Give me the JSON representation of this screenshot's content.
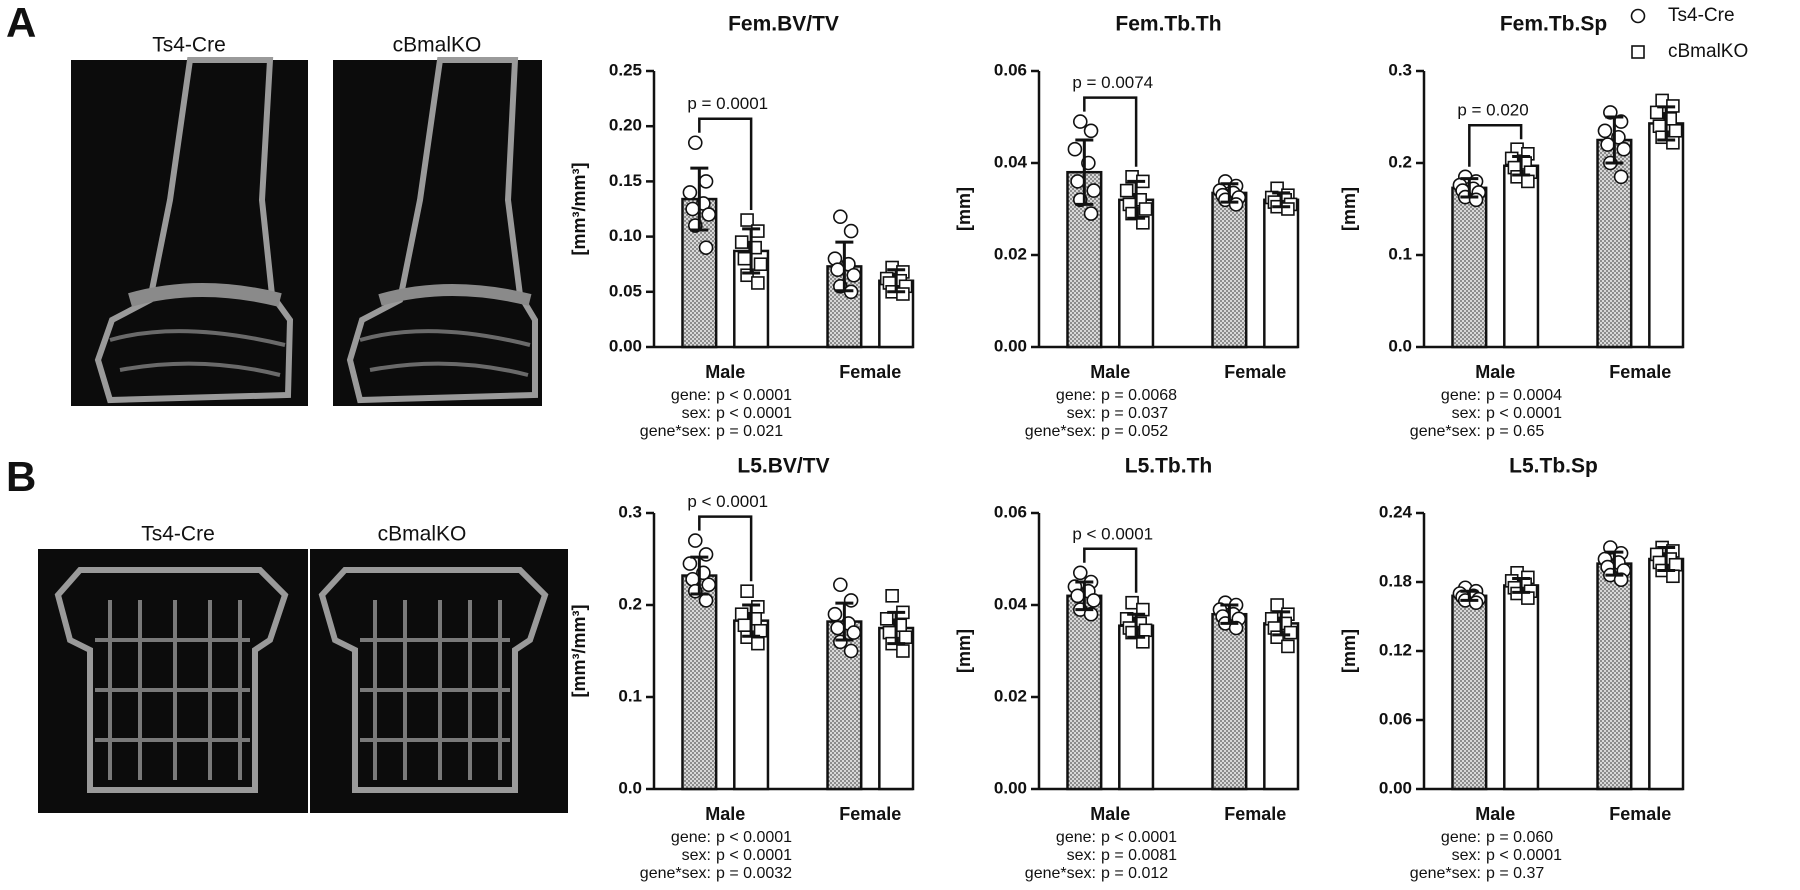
{
  "panels": [
    {
      "label": "A",
      "images": [
        "Ts4-Cre",
        "cBmalKO"
      ]
    },
    {
      "label": "B",
      "images": [
        "Ts4-Cre",
        "cBmalKO"
      ]
    }
  ],
  "chart_data": [
    {
      "type": "bar",
      "title": "Fem.BV/TV",
      "y_label": "[mm³/mm³]",
      "categories": [
        "Male",
        "Female"
      ],
      "ylim": [
        0,
        0.25
      ],
      "yticks": [
        {
          "value": 0,
          "label": "0.00"
        },
        0.05,
        {
          "value": 0.1,
          "label": "0.10"
        },
        0.15,
        {
          "value": 0.2,
          "label": "0.20"
        },
        0.25
      ],
      "series": [
        {
          "color": "#b8b8b8",
          "pattern": "dots",
          "marker": "circle",
          "values": [
            0.134,
            0.073
          ],
          "errors": [
            0.028,
            0.022
          ],
          "points": [
            [
              0.185,
              0.15,
              0.14,
              0.13,
              0.125,
              0.12,
              0.11,
              0.09
            ],
            [
              0.118,
              0.105,
              0.08,
              0.075,
              0.07,
              0.065,
              0.055,
              0.05
            ]
          ]
        },
        {
          "color": "#ffffff",
          "pattern": "none",
          "marker": "square",
          "values": [
            0.087,
            0.06
          ],
          "errors": [
            0.02,
            0.01
          ],
          "points": [
            [
              0.115,
              0.105,
              0.095,
              0.09,
              0.08,
              0.075,
              0.065,
              0.058
            ],
            [
              0.072,
              0.068,
              0.062,
              0.06,
              0.058,
              0.055,
              0.05,
              0.048
            ]
          ]
        }
      ],
      "comparison": {
        "text": "p = 0.0001"
      },
      "stats": [
        {
          "term": "gene:",
          "text": "p < 0.0001"
        },
        {
          "term": "sex:",
          "text": "p < 0.0001"
        },
        {
          "term": "gene*sex:",
          "text": "p = 0.021"
        }
      ]
    },
    {
      "type": "bar",
      "title": "Fem.Tb.Th",
      "y_label": "[mm]",
      "categories": [
        "Male",
        "Female"
      ],
      "ylim": [
        0,
        0.06
      ],
      "yticks": [
        {
          "value": 0,
          "label": "0.00"
        },
        0.02,
        0.04,
        0.06
      ],
      "series": [
        {
          "color": "#b8b8b8",
          "pattern": "dots",
          "marker": "circle",
          "values": [
            0.038,
            0.0335
          ],
          "errors": [
            0.007,
            0.002
          ],
          "points": [
            [
              0.049,
              0.047,
              0.043,
              0.04,
              0.036,
              0.034,
              0.032,
              0.029
            ],
            [
              0.036,
              0.035,
              0.034,
              0.0335,
              0.033,
              0.0325,
              0.032,
              0.031
            ]
          ]
        },
        {
          "color": "#ffffff",
          "pattern": "none",
          "marker": "square",
          "values": [
            0.032,
            0.032
          ],
          "errors": [
            0.004,
            0.0015
          ],
          "points": [
            [
              0.037,
              0.036,
              0.034,
              0.032,
              0.031,
              0.03,
              0.029,
              0.027
            ],
            [
              0.0345,
              0.033,
              0.0325,
              0.032,
              0.0315,
              0.031,
              0.0305,
              0.03
            ]
          ]
        }
      ],
      "comparison": {
        "text": "p = 0.0074"
      },
      "stats": [
        {
          "term": "gene:",
          "text": "p = 0.0068"
        },
        {
          "term": "sex:",
          "text": "p = 0.037"
        },
        {
          "term": "gene*sex:",
          "text": "p = 0.052"
        }
      ]
    },
    {
      "type": "bar",
      "title": "Fem.Tb.Sp",
      "y_label": "[mm]",
      "categories": [
        "Male",
        "Female"
      ],
      "ylim": [
        0,
        0.3
      ],
      "yticks": [
        {
          "value": 0,
          "label": "0.0"
        },
        0.1,
        0.2,
        0.3
      ],
      "legend": "top-right",
      "series": [
        {
          "name": "Ts4-Cre",
          "color": "#b8b8b8",
          "pattern": "dots",
          "marker": "circle",
          "values": [
            0.173,
            0.225
          ],
          "errors": [
            0.01,
            0.025
          ],
          "points": [
            [
              0.185,
              0.18,
              0.176,
              0.172,
              0.17,
              0.168,
              0.163,
              0.16
            ],
            [
              0.255,
              0.245,
              0.235,
              0.228,
              0.22,
              0.215,
              0.2,
              0.185
            ]
          ]
        },
        {
          "name": "cBmalKO",
          "color": "#ffffff",
          "pattern": "none",
          "marker": "square",
          "values": [
            0.197,
            0.243
          ],
          "errors": [
            0.01,
            0.018
          ],
          "points": [
            [
              0.215,
              0.21,
              0.205,
              0.2,
              0.195,
              0.19,
              0.185,
              0.18
            ],
            [
              0.268,
              0.262,
              0.255,
              0.248,
              0.24,
              0.235,
              0.228,
              0.222
            ]
          ]
        }
      ],
      "comparison": {
        "text": "p = 0.020"
      },
      "stats": [
        {
          "term": "gene:",
          "text": "p = 0.0004"
        },
        {
          "term": "sex:",
          "text": "p < 0.0001"
        },
        {
          "term": "gene*sex:",
          "text": "p = 0.65"
        }
      ]
    },
    {
      "type": "bar",
      "title": "L5.BV/TV",
      "y_label": "[mm³/mm³]",
      "categories": [
        "Male",
        "Female"
      ],
      "ylim": [
        0,
        0.3
      ],
      "yticks": [
        {
          "value": 0,
          "label": "0.0"
        },
        0.1,
        0.2,
        0.3
      ],
      "series": [
        {
          "color": "#b8b8b8",
          "pattern": "dots",
          "marker": "circle",
          "values": [
            0.232,
            0.182
          ],
          "errors": [
            0.02,
            0.02
          ],
          "points": [
            [
              0.27,
              0.255,
              0.245,
              0.235,
              0.228,
              0.222,
              0.215,
              0.205
            ],
            [
              0.222,
              0.205,
              0.19,
              0.18,
              0.175,
              0.17,
              0.16,
              0.15
            ]
          ]
        },
        {
          "color": "#ffffff",
          "pattern": "none",
          "marker": "square",
          "values": [
            0.183,
            0.175
          ],
          "errors": [
            0.017,
            0.017
          ],
          "points": [
            [
              0.215,
              0.198,
              0.19,
              0.185,
              0.178,
              0.172,
              0.165,
              0.158
            ],
            [
              0.21,
              0.192,
              0.185,
              0.178,
              0.17,
              0.165,
              0.158,
              0.15
            ]
          ]
        }
      ],
      "comparison": {
        "text": "p < 0.0001"
      },
      "stats": [
        {
          "term": "gene:",
          "text": "p < 0.0001"
        },
        {
          "term": "sex:",
          "text": "p < 0.0001"
        },
        {
          "term": "gene*sex:",
          "text": "p = 0.0032"
        }
      ]
    },
    {
      "type": "bar",
      "title": "L5.Tb.Th",
      "y_label": "[mm]",
      "categories": [
        "Male",
        "Female"
      ],
      "ylim": [
        0,
        0.06
      ],
      "yticks": [
        {
          "value": 0,
          "label": "0.00"
        },
        0.02,
        0.04,
        0.06
      ],
      "series": [
        {
          "color": "#b8b8b8",
          "pattern": "dots",
          "marker": "circle",
          "values": [
            0.042,
            0.038
          ],
          "errors": [
            0.003,
            0.002
          ],
          "points": [
            [
              0.047,
              0.045,
              0.044,
              0.043,
              0.042,
              0.041,
              0.039,
              0.038
            ],
            [
              0.0405,
              0.04,
              0.039,
              0.038,
              0.0375,
              0.037,
              0.036,
              0.035
            ]
          ]
        },
        {
          "color": "#ffffff",
          "pattern": "none",
          "marker": "square",
          "values": [
            0.0355,
            0.036
          ],
          "errors": [
            0.0025,
            0.0025
          ],
          "points": [
            [
              0.0405,
              0.039,
              0.037,
              0.036,
              0.035,
              0.0345,
              0.034,
              0.032
            ],
            [
              0.04,
              0.038,
              0.037,
              0.036,
              0.035,
              0.034,
              0.033,
              0.031
            ]
          ]
        }
      ],
      "comparison": {
        "text": "p < 0.0001"
      },
      "stats": [
        {
          "term": "gene:",
          "text": "p < 0.0001"
        },
        {
          "term": "sex:",
          "text": "p = 0.0081"
        },
        {
          "term": "gene*sex:",
          "text": "p = 0.012"
        }
      ]
    },
    {
      "type": "bar",
      "title": "L5.Tb.Sp",
      "y_label": "[mm]",
      "categories": [
        "Male",
        "Female"
      ],
      "ylim": [
        0,
        0.24
      ],
      "yticks": [
        {
          "value": 0,
          "label": "0.00"
        },
        0.06,
        0.12,
        0.18,
        0.24
      ],
      "series": [
        {
          "color": "#b8b8b8",
          "pattern": "dots",
          "marker": "circle",
          "values": [
            0.168,
            0.196
          ],
          "errors": [
            0.004,
            0.01
          ],
          "points": [
            [
              0.175,
              0.172,
              0.17,
              0.168,
              0.167,
              0.165,
              0.164,
              0.162
            ],
            [
              0.21,
              0.205,
              0.2,
              0.197,
              0.193,
              0.19,
              0.186,
              0.182
            ]
          ]
        },
        {
          "color": "#ffffff",
          "pattern": "none",
          "marker": "square",
          "values": [
            0.177,
            0.2
          ],
          "errors": [
            0.006,
            0.01
          ],
          "points": [
            [
              0.188,
              0.184,
              0.181,
              0.178,
              0.175,
              0.172,
              0.17,
              0.166
            ],
            [
              0.21,
              0.207,
              0.204,
              0.2,
              0.197,
              0.195,
              0.19,
              0.185
            ]
          ]
        }
      ],
      "stats": [
        {
          "term": "gene:",
          "text": "p = 0.060"
        },
        {
          "term": "sex:",
          "text": "p < 0.0001"
        },
        {
          "term": "gene*sex:",
          "text": "p = 0.37"
        }
      ]
    }
  ]
}
